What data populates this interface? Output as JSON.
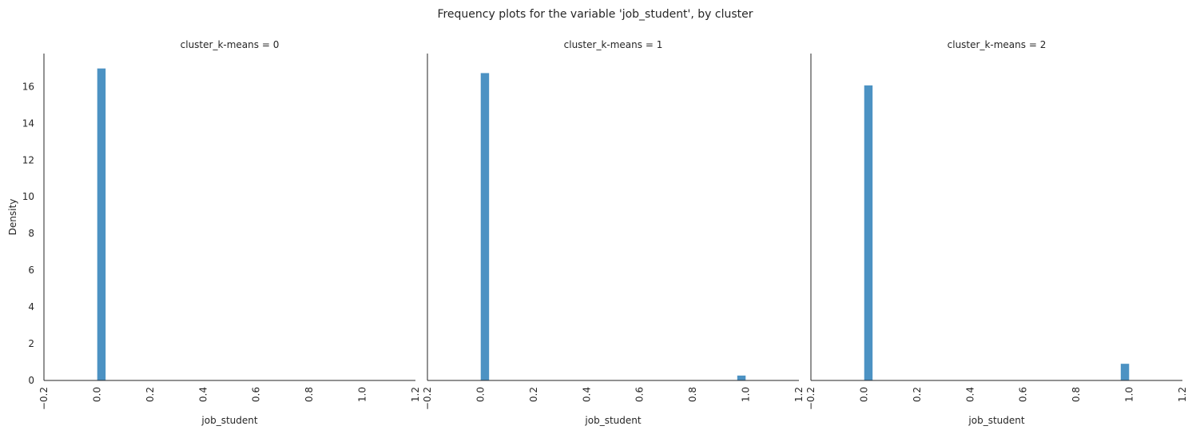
{
  "figure": {
    "title": "Frequency plots for the variable 'job_student', by cluster"
  },
  "chart_data": {
    "type": "bar",
    "bar_color": "#4c92c3",
    "xlabel": "job_student",
    "ylabel": "Density",
    "xlim": [
      -0.2,
      1.2
    ],
    "ylim": [
      0,
      17.8
    ],
    "xticks": [
      "-0.2",
      "0.0",
      "0.2",
      "0.4",
      "0.6",
      "0.8",
      "1.0",
      "1.2"
    ],
    "yticks": [
      "0",
      "2",
      "4",
      "6",
      "8",
      "10",
      "12",
      "14",
      "16"
    ],
    "bin_width": 0.0333,
    "grid": false,
    "panels": [
      {
        "title": "cluster_k-means = 0",
        "bars": [
          {
            "x_start": 0.0,
            "x_end": 0.0333,
            "density": 17.0
          }
        ]
      },
      {
        "title": "cluster_k-means = 1",
        "bars": [
          {
            "x_start": 0.0,
            "x_end": 0.0333,
            "density": 16.75
          },
          {
            "x_start": 0.9667,
            "x_end": 1.0,
            "density": 0.28
          }
        ]
      },
      {
        "title": "cluster_k-means = 2",
        "bars": [
          {
            "x_start": 0.0,
            "x_end": 0.0333,
            "density": 16.08
          },
          {
            "x_start": 0.9667,
            "x_end": 1.0,
            "density": 0.92
          }
        ]
      }
    ]
  }
}
